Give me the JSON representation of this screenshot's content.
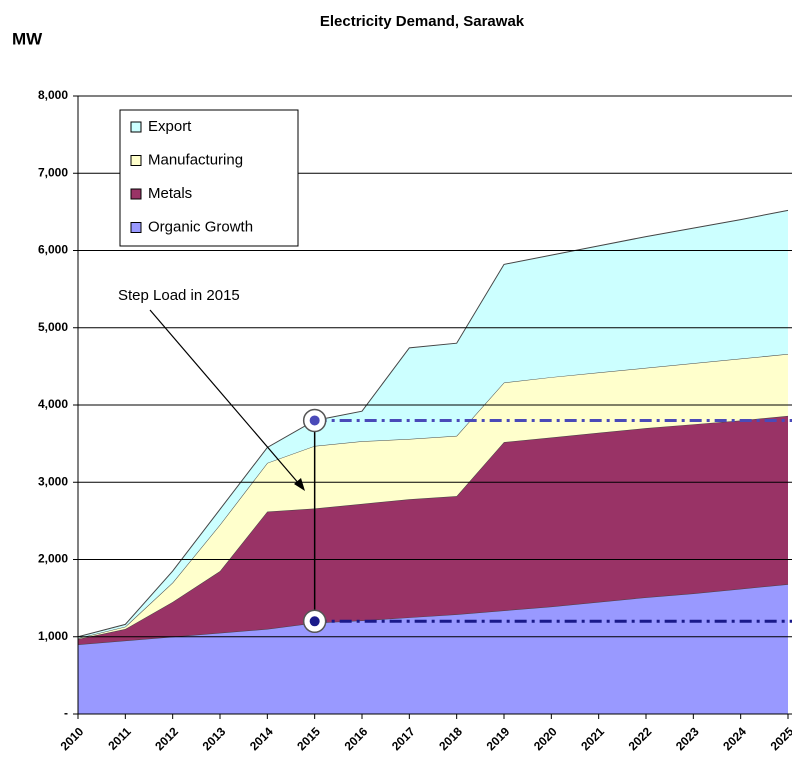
{
  "chart_data": {
    "type": "stacked_area",
    "title": "Electricity Demand, Sarawak",
    "y_label": "MW",
    "categories": [
      "2010",
      "2011",
      "2012",
      "2013",
      "2014",
      "2015",
      "2016",
      "2017",
      "2018",
      "2019",
      "2020",
      "2021",
      "2022",
      "2023",
      "2024",
      "2025"
    ],
    "series": [
      {
        "name": "Organic Growth",
        "color": "#9999ff",
        "values": [
          900,
          950,
          1000,
          1050,
          1100,
          1180,
          1210,
          1250,
          1290,
          1340,
          1390,
          1450,
          1510,
          1560,
          1620,
          1680
        ]
      },
      {
        "name": "Metals",
        "color": "#993366",
        "values": [
          70,
          150,
          450,
          800,
          1520,
          1480,
          1510,
          1530,
          1530,
          2180,
          2190,
          2190,
          2190,
          2190,
          2180,
          2180
        ]
      },
      {
        "name": "Manufacturing",
        "color": "#ffffcc",
        "values": [
          10,
          30,
          250,
          600,
          630,
          810,
          810,
          780,
          780,
          770,
          780,
          780,
          780,
          790,
          800,
          800
        ]
      },
      {
        "name": "Export",
        "color": "#ccffff",
        "values": [
          20,
          30,
          150,
          200,
          200,
          330,
          390,
          1180,
          1200,
          1530,
          1580,
          1640,
          1700,
          1750,
          1800,
          1860
        ]
      }
    ],
    "ylim": [
      0,
      8000
    ],
    "yticks": [
      {
        "value": 0,
        "label": "-"
      },
      {
        "value": 1000,
        "label": "1,000"
      },
      {
        "value": 2000,
        "label": "2,000"
      },
      {
        "value": 3000,
        "label": "3,000"
      },
      {
        "value": 4000,
        "label": "4,000"
      },
      {
        "value": 5000,
        "label": "5,000"
      },
      {
        "value": 6000,
        "label": "6,000"
      },
      {
        "value": 7000,
        "label": "7,000"
      },
      {
        "value": 8000,
        "label": "8,000"
      }
    ],
    "grid": true,
    "legend": "upper left",
    "annotation": "Step Load in 2015",
    "reference_lines": [
      {
        "from": "2015",
        "value": 3800,
        "color": "#4a4ab8"
      },
      {
        "from": "2015",
        "value": 1200,
        "color": "#1a1a8a"
      }
    ]
  }
}
